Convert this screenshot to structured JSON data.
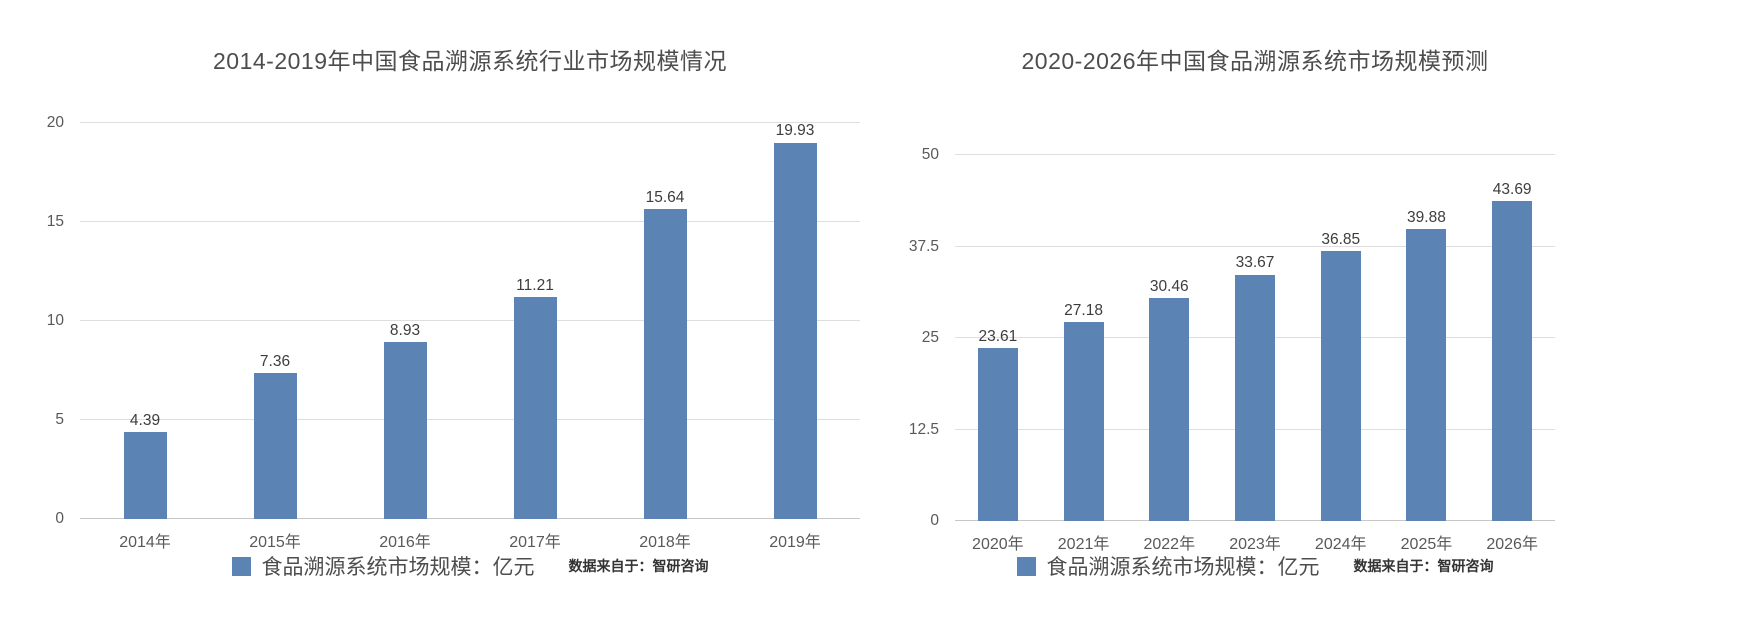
{
  "page": {
    "background": "#ffffff"
  },
  "chart_data": [
    {
      "type": "bar",
      "title": "2014-2019年中国食品溯源系统行业市场规模情况",
      "categories": [
        "2014年",
        "2015年",
        "2016年",
        "2017年",
        "2018年",
        "2019年"
      ],
      "values": [
        4.39,
        7.36,
        8.93,
        11.21,
        15.64,
        19.93
      ],
      "value_labels": [
        "4.39",
        "7.36",
        "8.93",
        "11.21",
        "15.64",
        "19.93"
      ],
      "xlabel": "",
      "ylabel": "",
      "ylim": [
        0,
        20
      ],
      "yticks": [
        {
          "v": 0,
          "label": "0"
        },
        {
          "v": 5,
          "label": "5"
        },
        {
          "v": 10,
          "label": "10"
        },
        {
          "v": 15,
          "label": "15"
        },
        {
          "v": 20,
          "label": "20"
        }
      ],
      "grid": "horizontal",
      "legend_position": "bottom",
      "legend_label": "食品溯源系统市场规模：亿元",
      "source_note": "数据来自于：智研咨询",
      "bar_color": "#5b84b4",
      "gridline_color": "#dedede"
    },
    {
      "type": "bar",
      "title": "2020-2026年中国食品溯源系统市场规模预测",
      "categories": [
        "2020年",
        "2021年",
        "2022年",
        "2023年",
        "2024年",
        "2025年",
        "2026年"
      ],
      "values": [
        23.61,
        27.18,
        30.46,
        33.67,
        36.85,
        39.88,
        43.69
      ],
      "value_labels": [
        "23.61",
        "27.18",
        "30.46",
        "33.67",
        "36.85",
        "39.88",
        "43.69"
      ],
      "xlabel": "",
      "ylabel": "",
      "ylim": [
        0,
        50
      ],
      "yticks": [
        {
          "v": 0,
          "label": "0"
        },
        {
          "v": 12.5,
          "label": "12.5"
        },
        {
          "v": 25,
          "label": "25"
        },
        {
          "v": 37.5,
          "label": "37.5"
        },
        {
          "v": 50,
          "label": "50"
        }
      ],
      "grid": "horizontal",
      "legend_position": "bottom",
      "legend_label": "食品溯源系统市场规模：亿元",
      "source_note": "数据来自于：智研咨询",
      "bar_color": "#5b84b4",
      "gridline_color": "#dedede"
    }
  ]
}
